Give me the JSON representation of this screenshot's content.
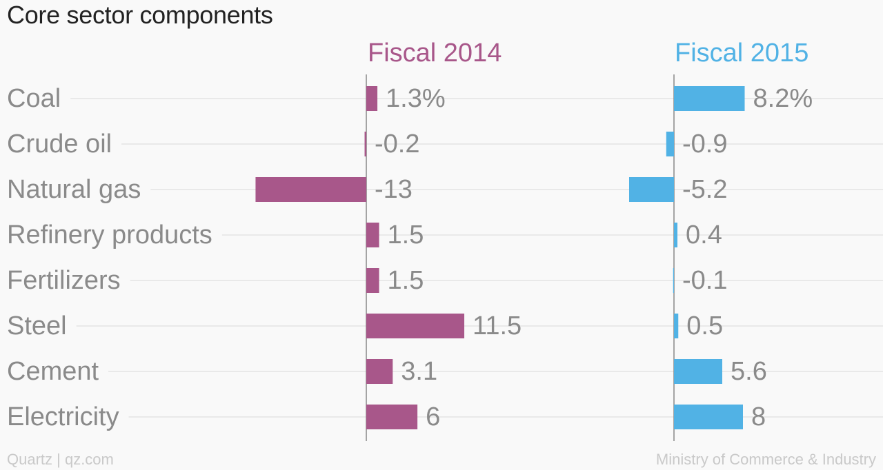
{
  "title": "Core sector components",
  "footer": {
    "left": "Quartz | qz.com",
    "right": "Ministry of Commerce & Industry"
  },
  "colors": {
    "fiscal_2014": "#a8578a",
    "fiscal_2015": "#51b2e5",
    "category_text": "#8a8a8a",
    "value_text": "#8a8a8a",
    "gridline": "#e9e9e9",
    "axis": "#888888"
  },
  "chart_data": {
    "type": "bar",
    "orientation": "horizontal",
    "title": "Core sector components",
    "categories": [
      "Coal",
      "Crude oil",
      "Natural gas",
      "Refinery products",
      "Fertilizers",
      "Steel",
      "Cement",
      "Electricity"
    ],
    "series": [
      {
        "name": "Fiscal 2014",
        "values": [
          1.3,
          -0.2,
          -13,
          1.5,
          1.5,
          11.5,
          3.1,
          6
        ],
        "labels": [
          "1.3%",
          "-0.2",
          "-13",
          "1.5",
          "1.5",
          "11.5",
          "3.1",
          "6"
        ]
      },
      {
        "name": "Fiscal 2015",
        "values": [
          8.2,
          -0.9,
          -5.2,
          0.4,
          -0.1,
          0.5,
          5.6,
          8
        ],
        "labels": [
          "8.2%",
          "-0.9",
          "-5.2",
          "0.4",
          "-0.1",
          "0.5",
          "5.6",
          "8"
        ]
      }
    ],
    "unit": "%",
    "gridlines": true,
    "legend": "panel headers"
  }
}
